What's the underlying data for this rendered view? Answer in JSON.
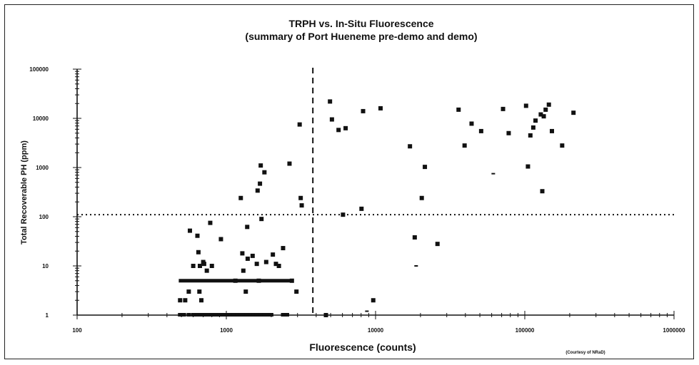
{
  "chart_data": {
    "type": "scatter",
    "title": "TRPH vs. In-Situ Fluorescence",
    "subtitle": "(summary of Port Hueneme pre-demo and demo)",
    "xlabel": "Fluorescence (counts)",
    "ylabel": "Total Recoverable PH (ppm)",
    "x_scale": "log",
    "y_scale": "log",
    "xlim": [
      100,
      1000000
    ],
    "ylim": [
      1,
      100000
    ],
    "x_ticks": [
      "100",
      "1000",
      "10000",
      "100000",
      "1000000"
    ],
    "y_ticks": [
      "1",
      "10",
      "100",
      "1000",
      "10000",
      "100000"
    ],
    "grid": false,
    "legend": "none",
    "credit": "(Courtesy of NRaD)",
    "reference_lines": [
      {
        "orientation": "vertical",
        "x": 3800,
        "style": "dashed"
      },
      {
        "orientation": "horizontal",
        "y": 110,
        "style": "dotted"
      }
    ],
    "series": [
      {
        "points": [
          [
            490,
            2
          ],
          [
            530,
            2
          ],
          [
            560,
            3
          ],
          [
            570,
            52
          ],
          [
            600,
            10
          ],
          [
            640,
            41
          ],
          [
            650,
            19
          ],
          [
            660,
            3
          ],
          [
            665,
            10
          ],
          [
            680,
            2
          ],
          [
            700,
            12
          ],
          [
            710,
            11
          ],
          [
            740,
            8
          ],
          [
            780,
            75
          ],
          [
            800,
            10
          ],
          [
            920,
            35
          ],
          [
            1150,
            5
          ],
          [
            1250,
            240
          ],
          [
            1280,
            18
          ],
          [
            1300,
            8
          ],
          [
            1350,
            3
          ],
          [
            1380,
            62
          ],
          [
            1390,
            14
          ],
          [
            1500,
            16
          ],
          [
            1600,
            11
          ],
          [
            1620,
            340
          ],
          [
            1650,
            5
          ],
          [
            1680,
            470
          ],
          [
            1700,
            1100
          ],
          [
            1720,
            90
          ],
          [
            1800,
            800
          ],
          [
            1850,
            12
          ],
          [
            2050,
            17
          ],
          [
            2150,
            11
          ],
          [
            2250,
            10
          ],
          [
            2400,
            23
          ],
          [
            2650,
            1200
          ],
          [
            2750,
            5
          ],
          [
            2950,
            3
          ],
          [
            3100,
            7500
          ],
          [
            3150,
            240
          ],
          [
            3200,
            170
          ],
          [
            4650,
            1
          ],
          [
            4950,
            22000
          ],
          [
            5100,
            9500
          ],
          [
            5650,
            5800
          ],
          [
            6050,
            110
          ],
          [
            6300,
            6300
          ],
          [
            8050,
            145
          ],
          [
            8250,
            14000
          ],
          [
            9650,
            2
          ],
          [
            10800,
            16000
          ],
          [
            17000,
            2700
          ],
          [
            18300,
            38
          ],
          [
            20400,
            240
          ],
          [
            21400,
            1030
          ],
          [
            26000,
            28
          ],
          [
            36000,
            15000
          ],
          [
            39500,
            2800
          ],
          [
            44000,
            7800
          ],
          [
            51000,
            5500
          ],
          [
            71500,
            15500
          ],
          [
            78000,
            5000
          ],
          [
            102000,
            18000
          ],
          [
            105000,
            1050
          ],
          [
            109000,
            4500
          ],
          [
            114000,
            6500
          ],
          [
            118000,
            9000
          ],
          [
            128000,
            12000
          ],
          [
            131000,
            330
          ],
          [
            134000,
            11000
          ],
          [
            138000,
            15000
          ],
          [
            145000,
            19000
          ],
          [
            152000,
            5500
          ],
          [
            178000,
            2800
          ],
          [
            212000,
            13000
          ]
        ]
      }
    ],
    "floor_points_x": [
      490,
      520,
      560,
      600,
      640,
      680,
      720,
      760,
      800,
      850,
      900,
      950,
      1000,
      1060,
      1120,
      1180,
      1240,
      1300,
      1370,
      1440,
      1520,
      1600,
      1700,
      1800,
      1900,
      2000,
      2400,
      2550
    ],
    "row5_range": [
      480,
      2700
    ],
    "minor_marks": [
      [
        18700,
        10
      ],
      [
        61500,
        750
      ],
      [
        8750,
        1.2
      ]
    ]
  }
}
